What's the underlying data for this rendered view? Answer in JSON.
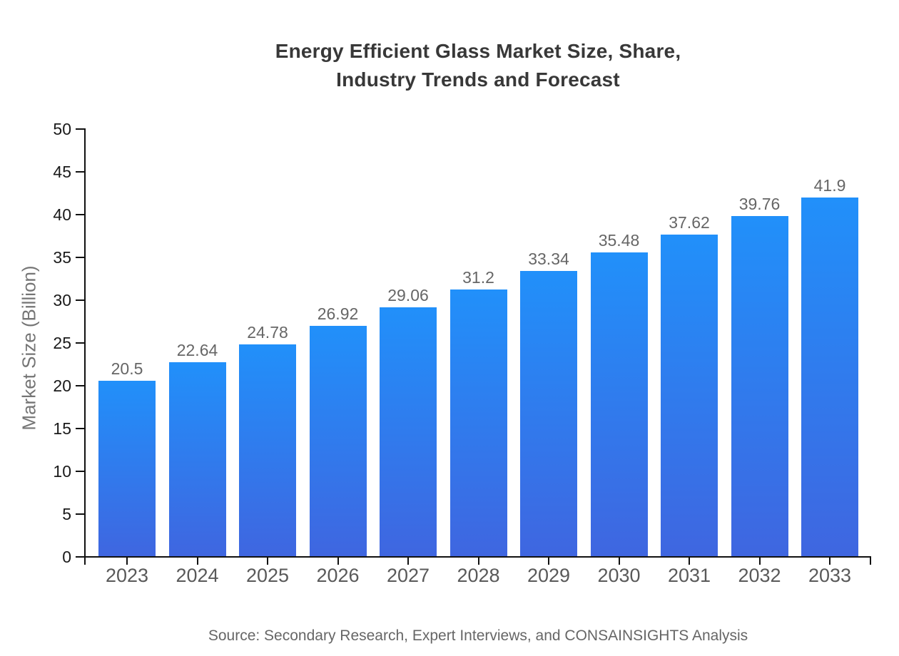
{
  "page": {
    "title_line1": "Energy Efficient Glass Market Size, Share,",
    "title_line2": "Industry Trends and Forecast",
    "source_note": "Source: Secondary Research, Expert Interviews, and CONSAINSIGHTS Analysis"
  },
  "chart_data": {
    "type": "bar",
    "title": "Energy Efficient Glass Market Size, Share, Industry Trends and Forecast",
    "categories": [
      "2023",
      "2024",
      "2025",
      "2026",
      "2027",
      "2028",
      "2029",
      "2030",
      "2031",
      "2032",
      "2033"
    ],
    "values": [
      20.5,
      22.64,
      24.78,
      26.92,
      29.06,
      31.2,
      33.34,
      35.48,
      37.62,
      39.76,
      41.9
    ],
    "xlabel": "",
    "ylabel": "Market Size (Billion)",
    "ylim": [
      0,
      50
    ],
    "ytick_step": 5,
    "yticks": [
      0,
      5,
      10,
      15,
      20,
      25,
      30,
      35,
      40,
      45,
      50
    ],
    "grid": false,
    "legend_position": "none",
    "bar_color_top": "#2190FA",
    "bar_color_bottom": "#3F66E0",
    "axis_color": "#111111",
    "value_label_color": "#666666",
    "source": "Source: Secondary Research, Expert Interviews, and CONSAINSIGHTS Analysis"
  }
}
